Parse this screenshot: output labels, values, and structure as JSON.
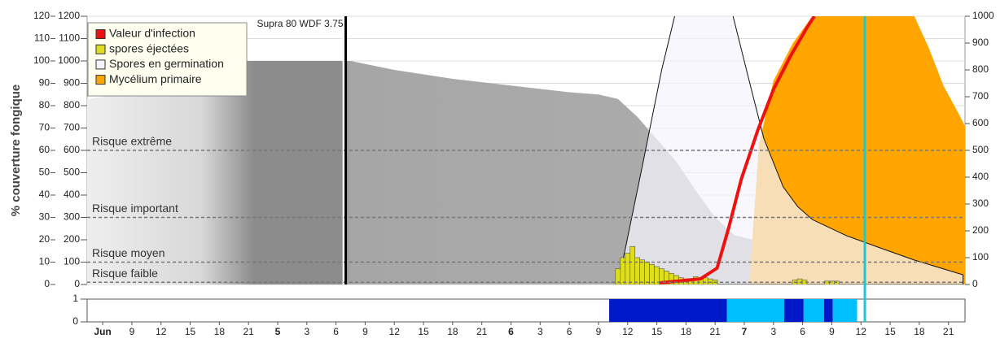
{
  "chart_data": {
    "type": "area",
    "ylabel": "% couverture fongique",
    "xlim": [
      4.4,
      94.7
    ],
    "xticks": [
      {
        "value": 6,
        "label": "Jun",
        "bold": true
      },
      9,
      12,
      15,
      18,
      21,
      {
        "value": 24,
        "label": "5",
        "bold": true
      },
      {
        "value": 27,
        "label": "3"
      },
      {
        "value": 30,
        "label": "6"
      },
      {
        "value": 33,
        "label": "9"
      },
      {
        "value": 36,
        "label": "12"
      },
      {
        "value": 39,
        "label": "15"
      },
      {
        "value": 42,
        "label": "18"
      },
      {
        "value": 45,
        "label": "21"
      },
      {
        "value": 48,
        "label": "6",
        "bold": true
      },
      {
        "value": 51,
        "label": "3"
      },
      {
        "value": 54,
        "label": "6"
      },
      {
        "value": 57,
        "label": "9"
      },
      {
        "value": 60,
        "label": "12"
      },
      {
        "value": 63,
        "label": "15"
      },
      {
        "value": 66,
        "label": "18"
      },
      {
        "value": 69,
        "label": "21"
      },
      {
        "value": 72,
        "label": "7",
        "bold": true
      },
      {
        "value": 75,
        "label": "3"
      },
      {
        "value": 78,
        "label": "6"
      },
      {
        "value": 81,
        "label": "9"
      },
      {
        "value": 84,
        "label": "12"
      },
      {
        "value": 87,
        "label": "15"
      },
      {
        "value": 90,
        "label": "18"
      },
      {
        "value": 93,
        "label": "21"
      }
    ],
    "ylim": [
      0,
      120
    ],
    "yticks": [
      0,
      10,
      20,
      30,
      40,
      50,
      60,
      70,
      80,
      90,
      100,
      110,
      120
    ],
    "y3lim": [
      0,
      1200
    ],
    "y3ticks": [
      0,
      100,
      200,
      300,
      400,
      500,
      600,
      700,
      800,
      900,
      1000,
      1100,
      1200
    ],
    "y2lim": [
      0,
      1000
    ],
    "y2ticks": [
      0,
      100,
      200,
      300,
      400,
      500,
      600,
      700,
      800,
      900,
      1000
    ],
    "grid": true,
    "legend": "top-left",
    "risk_levels": [
      {
        "value": 60,
        "label": "Risque extrême"
      },
      {
        "value": 30,
        "label": "Risque important"
      },
      {
        "value": 10,
        "label": "Risque moyen"
      },
      {
        "value": 1,
        "label": "Risque faible"
      }
    ],
    "treatment": {
      "x": 31,
      "label": "Supra 80 WDF 3.75"
    },
    "now_marker": 84.4,
    "series": [
      {
        "kind": "area",
        "color": "#a8a8a8",
        "axis": "y",
        "x": [
          4.4,
          6,
          9,
          12,
          15,
          18,
          21,
          30.5,
          31.5,
          36,
          42,
          48,
          54,
          57,
          59,
          61,
          63,
          65,
          67,
          69,
          71,
          73,
          77,
          83,
          89,
          94.7
        ],
        "values": [
          83,
          84,
          88,
          93,
          97,
          100,
          100,
          100,
          100,
          96,
          92,
          89,
          86,
          85,
          83,
          75,
          65,
          55,
          42,
          30,
          22,
          20,
          20,
          18,
          16,
          15
        ]
      },
      {
        "name": "Mycélium primaire",
        "kind": "area",
        "color": "#ffa500",
        "axis": "y2",
        "x": [
          72.5,
          73.5,
          75,
          77,
          79,
          81,
          87,
          89.5,
          91,
          92.5,
          94,
          94.7
        ],
        "values": [
          0,
          520,
          760,
          900,
          1000,
          1100,
          1100,
          1000,
          880,
          740,
          640,
          590
        ]
      },
      {
        "name": "Spores en germination",
        "kind": "area",
        "color": "#f4f4fc",
        "axis": "y2",
        "x": [
          59,
          61.5,
          63.5,
          65.5,
          68,
          70.5,
          72.5,
          74,
          76,
          77.5,
          79,
          82.5,
          86,
          89.5,
          94.5
        ],
        "values": [
          0,
          440,
          800,
          1100,
          1200,
          1050,
          760,
          545,
          364,
          290,
          242,
          182,
          136,
          91,
          36
        ]
      },
      {
        "name": "spores éjectées",
        "kind": "bar",
        "color": "#dede1e",
        "axis": "y",
        "x": [
          59,
          59.5,
          60,
          60.5,
          61,
          61.5,
          62,
          62.5,
          63,
          63.5,
          64,
          64.5,
          65,
          65.5,
          66,
          66.5,
          67,
          67.5,
          68,
          68.5,
          69,
          77.2,
          77.7,
          78.2,
          80.5,
          81,
          81.5
        ],
        "values": [
          7,
          12,
          14,
          17,
          12,
          11,
          10,
          9,
          8,
          7,
          6,
          5,
          4,
          3,
          2.5,
          2,
          3.5,
          3,
          3,
          2.5,
          2,
          2,
          2.5,
          2,
          1.5,
          1.5,
          1.5
        ]
      },
      {
        "name": "Valeur d'infection",
        "kind": "line",
        "color": "#ee1111",
        "axis": "y2",
        "x": [
          63.3,
          67.5,
          69.2,
          70.4,
          71.7,
          73.4,
          75,
          76.7,
          78.4,
          79.2
        ],
        "values": [
          6,
          21,
          61,
          212,
          394,
          576,
          727,
          848,
          955,
          1000
        ]
      }
    ],
    "strip": {
      "ylim": [
        0,
        1
      ],
      "yticks": [
        0,
        1
      ],
      "segments": [
        {
          "start": 58.1,
          "end": 70.2,
          "value": 1,
          "color": "#0019c8"
        },
        {
          "start": 70.2,
          "end": 76.1,
          "value": 1,
          "color": "#00bfff"
        },
        {
          "start": 76.1,
          "end": 78.1,
          "value": 1,
          "color": "#0019c8"
        },
        {
          "start": 78.1,
          "end": 80.2,
          "value": 1,
          "color": "#00bfff"
        },
        {
          "start": 80.2,
          "end": 81.1,
          "value": 1,
          "color": "#0019c8"
        },
        {
          "start": 81.1,
          "end": 83.6,
          "value": 1,
          "color": "#00bfff"
        }
      ]
    }
  }
}
